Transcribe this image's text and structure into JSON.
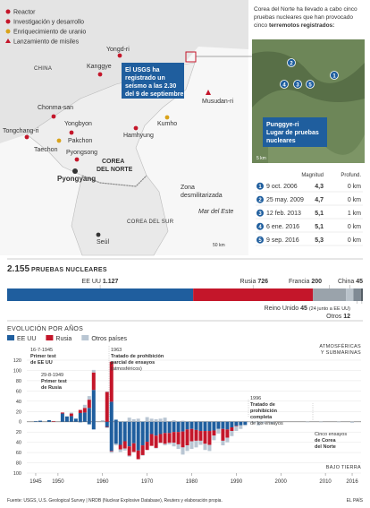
{
  "map": {
    "legend": [
      "Reactor",
      "Investigación y desarrollo",
      "Enriquecimiento de uranio",
      "Lanzamiento de misiles"
    ],
    "labels": [
      "Yongd-ri",
      "Kanggye",
      "CHINA",
      "Chonma-san",
      "Yongbyon",
      "Tongchang-ri",
      "Pakchon",
      "Taechon",
      "Pyongsong",
      "Pyongyang",
      "Hamhyung",
      "Kumho",
      "COREA",
      "DEL NORTE",
      "Musudan-ri",
      "Zona",
      "desmilitarizada",
      "Mar del Este",
      "COREA DEL SUR",
      "Seúl",
      "50 km"
    ],
    "callout": [
      "El USGS ha",
      "registrado un",
      "seísmo a las 2.30",
      "del 9 de septiembre"
    ]
  },
  "info": {
    "intro": [
      "Corea del Norte ha llevado a cabo cinco",
      "pruebas nucleares que han provocado"
    ],
    "intro_end": "cinco",
    "intro_bold": "terremotos registrados:",
    "site": [
      "Punggye-ri",
      "Lugar de pruebas",
      "nucleares"
    ],
    "scale": "5 km"
  },
  "table": {
    "header": [
      "Magnitud",
      "Profund."
    ],
    "rows": [
      [
        "1",
        "9 oct. 2006",
        "4,3",
        "0 km"
      ],
      [
        "2",
        "25 may. 2009",
        "4,7",
        "0 km"
      ],
      [
        "3",
        "12 feb. 2013",
        "5,1",
        "1 km"
      ],
      [
        "4",
        "6 ene. 2016",
        "5,1",
        "0 km"
      ],
      [
        "5",
        "9 sep. 2016",
        "5,3",
        "0 km"
      ]
    ]
  },
  "source": "Fuente: USGS, U.S. Geological Survey | NRDB (Nuclear Explosive Database), Reuters y elaboración propia.",
  "brand": "EL PAÍS",
  "chart_data": [
    {
      "type": "stacked_bar",
      "title": "2.155",
      "subtitle": "PRUEBAS NUCLEARES",
      "xlim": [
        0,
        2155
      ],
      "series": [
        {
          "name": "EE UU",
          "color": "#1f5e9e",
          "values": [
            1127
          ],
          "value_labels": [
            "1.127"
          ]
        },
        {
          "name": "Rusia",
          "color": "#c4162a",
          "values": [
            726
          ]
        },
        {
          "name": "Francia",
          "color": "#9aa3ab",
          "values": [
            200
          ]
        },
        {
          "name": "China",
          "color": "#b9c2ca",
          "values": [
            45
          ]
        },
        {
          "name": "Reino Unido",
          "color": "#7f8a94",
          "values": [
            45
          ],
          "note": "(24 junto a EE UU)"
        },
        {
          "name": "Otros",
          "color": "#555e66",
          "values": [
            12
          ]
        }
      ]
    },
    {
      "type": "bar",
      "title": "EVOLUCIÓN POR AÑOS",
      "label_top": [
        "ATMOSFÉRICAS",
        "Y SUBMARINAS"
      ],
      "label_bottom": "BAJO TIERRA",
      "x": [
        1945,
        1946,
        1948,
        1949,
        1951,
        1952,
        1953,
        1954,
        1955,
        1956,
        1957,
        1958,
        1960,
        1961,
        1962,
        1963,
        1964,
        1965,
        1966,
        1967,
        1968,
        1969,
        1970,
        1971,
        1972,
        1973,
        1974,
        1975,
        1976,
        1977,
        1978,
        1979,
        1980,
        1981,
        1982,
        1983,
        1984,
        1985,
        1986,
        1987,
        1988,
        1989,
        1990,
        1991,
        1992,
        1993,
        1994,
        1995,
        1996,
        1998,
        2006,
        2009,
        2013,
        2016
      ],
      "xlim": [
        1943,
        2018
      ],
      "xticks": [
        1945,
        1950,
        1960,
        1970,
        1980,
        1990,
        2000,
        2010,
        2016
      ],
      "ylim": [
        -100,
        120
      ],
      "yticks": [
        120,
        100,
        80,
        60,
        40,
        20,
        0,
        {
          "value": -20,
          "label": "20"
        },
        {
          "value": -40,
          "label": "40"
        },
        {
          "value": -60,
          "label": "60"
        },
        {
          "value": -80,
          "label": "80"
        },
        {
          "value": -100,
          "label": "100"
        }
      ],
      "series": [
        {
          "name": "EE UU",
          "color": "#1f5e9e",
          "values": [
            1,
            2,
            3,
            0,
            16,
            10,
            11,
            6,
            17,
            18,
            27,
            62,
            0,
            0,
            39,
            4,
            0,
            0,
            0,
            0,
            0,
            0,
            0,
            0,
            0,
            0,
            0,
            0,
            0,
            0,
            0,
            0,
            0,
            0,
            0,
            0,
            0,
            0,
            0,
            0,
            0,
            0,
            0,
            0,
            0,
            0,
            0,
            0,
            0,
            0,
            0,
            0,
            0,
            0
          ],
          "values_under": [
            0,
            0,
            0,
            0,
            0,
            0,
            0,
            0,
            -1,
            0,
            -5,
            -15,
            0,
            -10,
            -57,
            -43,
            -45,
            -38,
            -48,
            -42,
            -56,
            -46,
            -39,
            -24,
            -27,
            -24,
            -22,
            -22,
            -20,
            -20,
            -19,
            -15,
            -14,
            -16,
            -18,
            -18,
            -18,
            -17,
            -14,
            -14,
            -15,
            -11,
            -8,
            -7,
            -6,
            0,
            0,
            0,
            0,
            0,
            0,
            0,
            0,
            0
          ]
        },
        {
          "name": "Rusia",
          "color": "#c4162a",
          "values": [
            0,
            0,
            0,
            1,
            2,
            0,
            5,
            0,
            6,
            9,
            16,
            34,
            0,
            58,
            78,
            0,
            0,
            0,
            0,
            0,
            0,
            0,
            0,
            0,
            0,
            0,
            0,
            0,
            0,
            0,
            0,
            0,
            0,
            0,
            0,
            0,
            0,
            0,
            0,
            0,
            0,
            0,
            0,
            0,
            0,
            0,
            0,
            0,
            0,
            0,
            0,
            0,
            0,
            0
          ],
          "values_under": [
            0,
            0,
            0,
            0,
            0,
            0,
            0,
            0,
            0,
            0,
            0,
            0,
            0,
            -1,
            -1,
            0,
            -9,
            -14,
            -18,
            -17,
            -17,
            -19,
            -16,
            -23,
            -24,
            -17,
            -21,
            -19,
            -21,
            -24,
            -31,
            -31,
            -24,
            -21,
            -19,
            -25,
            -27,
            -10,
            0,
            -23,
            -16,
            -7,
            -1,
            0,
            0,
            0,
            0,
            0,
            0,
            0,
            0,
            0,
            0,
            0
          ]
        },
        {
          "name": "Otros países",
          "color": "#b9c6d3",
          "values": [
            0,
            0,
            0,
            0,
            0,
            1,
            2,
            0,
            0,
            6,
            7,
            5,
            3,
            1,
            0,
            0,
            1,
            1,
            8,
            5,
            6,
            1,
            9,
            6,
            5,
            6,
            8,
            0,
            3,
            1,
            2,
            1,
            1,
            0,
            0,
            0,
            0,
            0,
            0,
            0,
            0,
            0,
            0,
            0,
            0,
            0,
            0,
            0,
            0,
            0,
            0,
            0,
            0,
            0
          ],
          "values_under": [
            0,
            0,
            0,
            0,
            0,
            0,
            0,
            0,
            0,
            0,
            0,
            0,
            0,
            -1,
            -3,
            -3,
            -5,
            -4,
            -2,
            0,
            0,
            -1,
            0,
            0,
            -1,
            -1,
            -3,
            -3,
            -7,
            -9,
            -14,
            -11,
            -15,
            -13,
            -8,
            -12,
            -12,
            -9,
            -9,
            -9,
            -9,
            -10,
            -9,
            -7,
            -2,
            -1,
            -2,
            -7,
            -3,
            -4,
            -1,
            -1,
            -1,
            -2
          ]
        }
      ],
      "annotations": [
        [
          "16-7-1945",
          "Primer test",
          "de EE UU"
        ],
        [
          "29-8-1949",
          "Primer test",
          "de Rusia"
        ],
        [
          "1963",
          "Tratado de prohibición",
          "parcial de ensayos",
          "(atmosféricos)"
        ],
        [
          "1996",
          "Tratado de",
          "prohibición",
          "completa",
          "de los ensayos"
        ],
        [
          "Cinco ensayos",
          "de Corea",
          "del Norte"
        ]
      ]
    }
  ]
}
